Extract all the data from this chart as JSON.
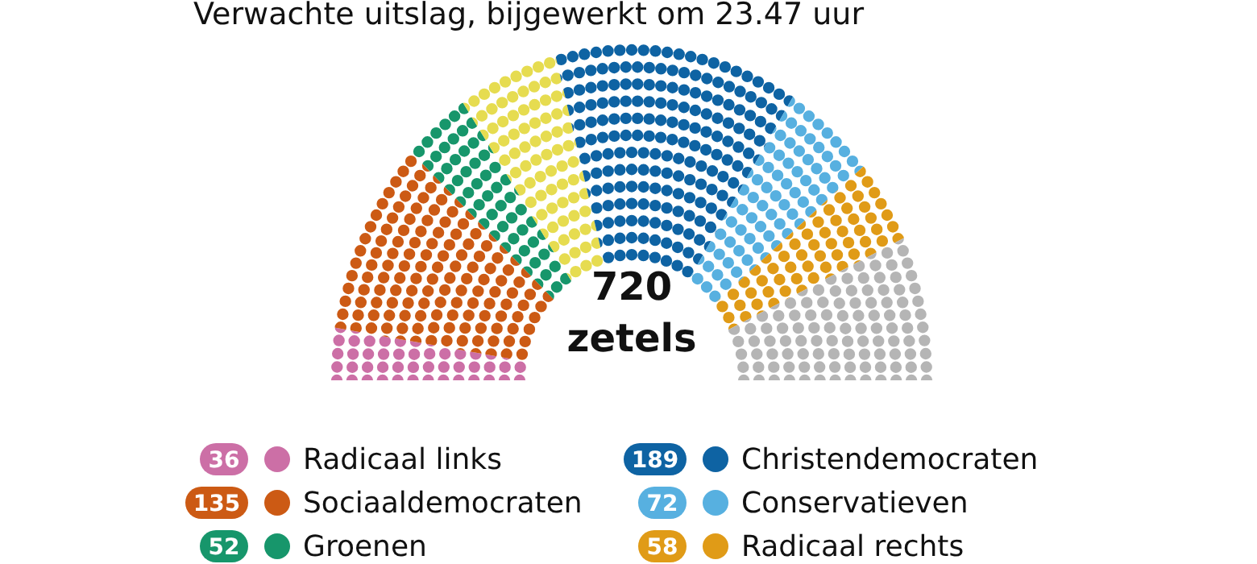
{
  "chart_data": {
    "type": "donut",
    "title": "Verwachte uitslag, bijgewerkt om 23.47 uur",
    "categories": [
      "Radicaal links",
      "Sociaaldemocraten",
      "Groenen",
      null,
      "Christendemocraten",
      "Conservatieven",
      "Radicaal rechts",
      null
    ],
    "values": [
      36,
      135,
      52,
      78,
      189,
      72,
      58,
      100
    ],
    "colors": [
      "#cc6fa6",
      "#cc5a14",
      "#17966b",
      "#e6dc50",
      "#0e63a3",
      "#57b0e0",
      "#e09b17",
      "#b5b5b5"
    ],
    "value_labels": [
      "36",
      "135",
      "52",
      null,
      "189",
      "72",
      "58",
      null
    ],
    "annotations": [
      "720 zetels"
    ],
    "legend": "bottom"
  }
}
